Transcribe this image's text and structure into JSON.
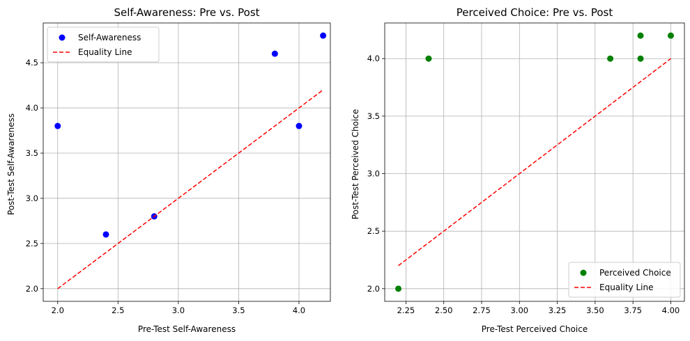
{
  "chart_data": [
    {
      "type": "scatter",
      "title": "Self-Awareness: Pre vs. Post",
      "xlabel": "Pre-Test Self-Awareness",
      "ylabel": "Post-Test Self-Awareness",
      "xlim": [
        1.88,
        4.26
      ],
      "ylim": [
        1.86,
        4.94
      ],
      "xticks": [
        "2.0",
        "2.5",
        "3.0",
        "3.5",
        "4.0"
      ],
      "yticks": [
        "2.0",
        "2.5",
        "3.0",
        "3.5",
        "4.0",
        "4.5"
      ],
      "grid": true,
      "legend_position": "top-left",
      "series": [
        {
          "name": "Self-Awareness",
          "kind": "points",
          "color": "#0000ff",
          "x": [
            2.0,
            2.4,
            2.8,
            3.8,
            4.0,
            4.2
          ],
          "y": [
            3.8,
            2.6,
            2.8,
            4.6,
            3.8,
            4.8
          ]
        },
        {
          "name": "Equality Line",
          "kind": "dashed-line",
          "color": "#ff0000",
          "x": [
            2.0,
            4.2
          ],
          "y": [
            2.0,
            4.2
          ]
        }
      ]
    },
    {
      "type": "scatter",
      "title": "Perceived Choice: Pre vs. Post",
      "xlabel": "Pre-Test Perceived Choice",
      "ylabel": "Post-Test Perceived Choice",
      "xlim": [
        2.11,
        4.09
      ],
      "ylim": [
        1.89,
        4.31
      ],
      "xticks": [
        "2.25",
        "2.50",
        "2.75",
        "3.00",
        "3.25",
        "3.50",
        "3.75",
        "4.00"
      ],
      "yticks": [
        "2.0",
        "2.5",
        "3.0",
        "3.5",
        "4.0"
      ],
      "grid": true,
      "legend_position": "bottom-right",
      "series": [
        {
          "name": "Perceived Choice",
          "kind": "points",
          "color": "#008000",
          "x": [
            2.2,
            2.4,
            3.6,
            3.8,
            3.8,
            4.0
          ],
          "y": [
            2.0,
            4.0,
            4.0,
            4.2,
            4.0,
            4.2
          ]
        },
        {
          "name": "Equality Line",
          "kind": "dashed-line",
          "color": "#ff0000",
          "x": [
            2.2,
            4.0
          ],
          "y": [
            2.2,
            4.0
          ]
        }
      ]
    }
  ]
}
